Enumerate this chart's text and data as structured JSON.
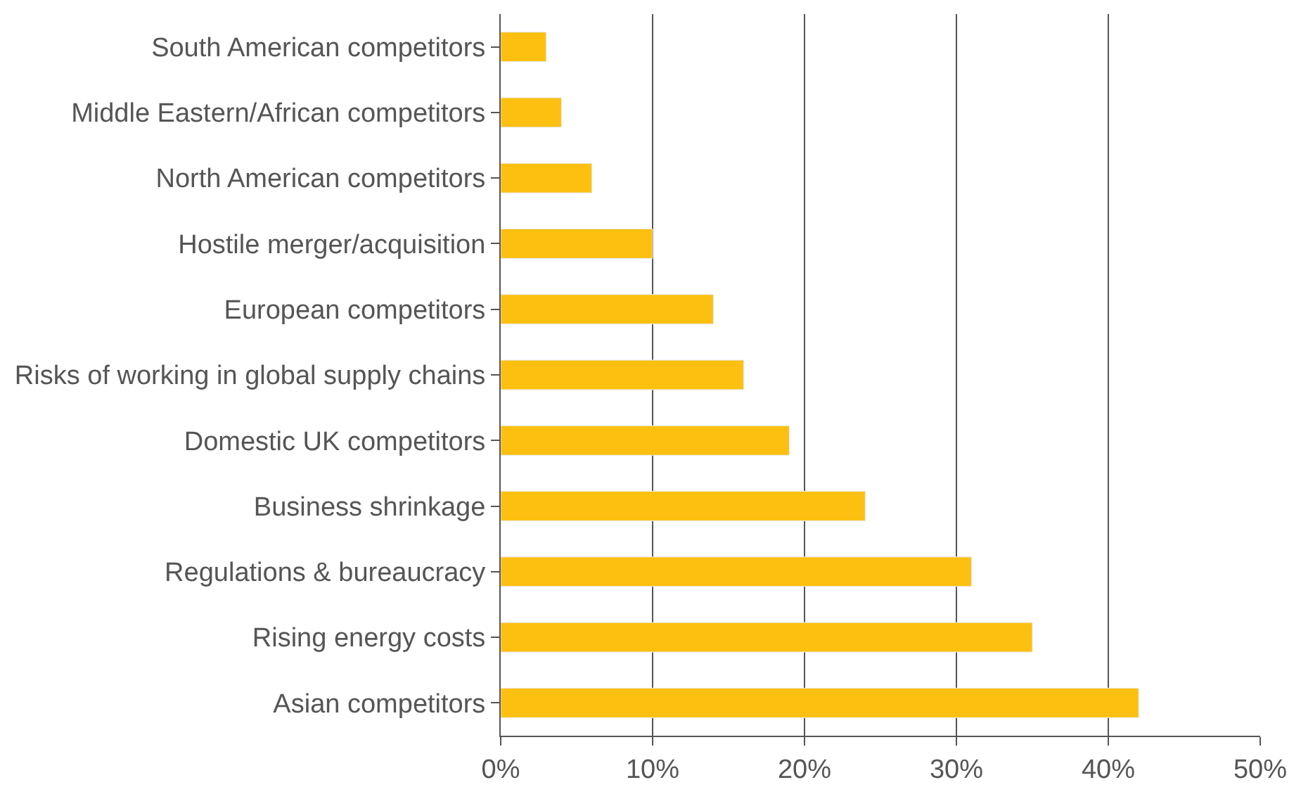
{
  "chart_data": {
    "type": "bar",
    "orientation": "horizontal",
    "categories": [
      "South American competitors",
      "Middle Eastern/African competitors",
      "North American competitors",
      "Hostile merger/acquisition",
      "European competitors",
      "Risks of working in global supply chains",
      "Domestic UK competitors",
      "Business shrinkage",
      "Regulations & bureaucracy",
      "Rising energy costs",
      "Asian competitors"
    ],
    "values": [
      3,
      4,
      6,
      10,
      14,
      16,
      19,
      24,
      31,
      35,
      42
    ],
    "color": "#fdc010",
    "xlim": [
      0,
      50
    ],
    "xticks": [
      {
        "value": 0,
        "label": "0%"
      },
      {
        "value": 10,
        "label": "10%"
      },
      {
        "value": 20,
        "label": "20%"
      },
      {
        "value": 30,
        "label": "30%"
      },
      {
        "value": 40,
        "label": "40%"
      },
      {
        "value": 50,
        "label": "50%"
      }
    ],
    "grid": "x",
    "legend": false
  }
}
